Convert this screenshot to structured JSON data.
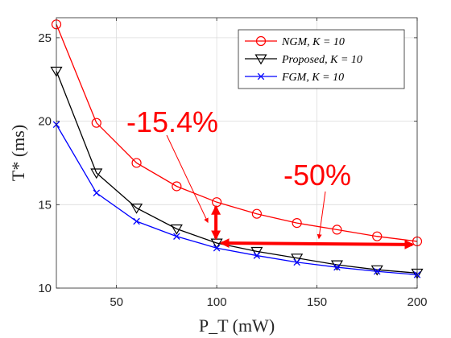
{
  "chart_data": {
    "type": "line",
    "title": "",
    "xlabel": "P_T (mW)",
    "ylabel": "T* (ms)",
    "xlim": [
      20,
      200
    ],
    "ylim": [
      10,
      26.2
    ],
    "xticks": [
      50,
      100,
      150,
      200
    ],
    "yticks": [
      10,
      15,
      20,
      25
    ],
    "grid": true,
    "legend_position": "top-right",
    "x": [
      20,
      40,
      60,
      80,
      100,
      120,
      140,
      160,
      180,
      200
    ],
    "series": [
      {
        "name": "NGM, K = 10",
        "color": "#ff0000",
        "marker": "circle",
        "values": [
          25.8,
          19.9,
          17.5,
          16.1,
          15.15,
          14.45,
          13.9,
          13.5,
          13.1,
          12.8
        ]
      },
      {
        "name": "Proposed, K = 10",
        "color": "#000000",
        "marker": "triangle-down",
        "values": [
          23.0,
          16.9,
          14.8,
          13.55,
          12.7,
          12.2,
          11.8,
          11.4,
          11.1,
          10.9
        ]
      },
      {
        "name": "FGM, K = 10",
        "color": "#0000ff",
        "marker": "x",
        "values": [
          19.8,
          15.7,
          14.0,
          13.1,
          12.4,
          11.95,
          11.55,
          11.25,
          11.0,
          10.8
        ]
      }
    ],
    "annotations": [
      {
        "text": "-15.4%",
        "color": "#ff0000"
      },
      {
        "text": "-50%",
        "color": "#ff0000"
      }
    ]
  }
}
